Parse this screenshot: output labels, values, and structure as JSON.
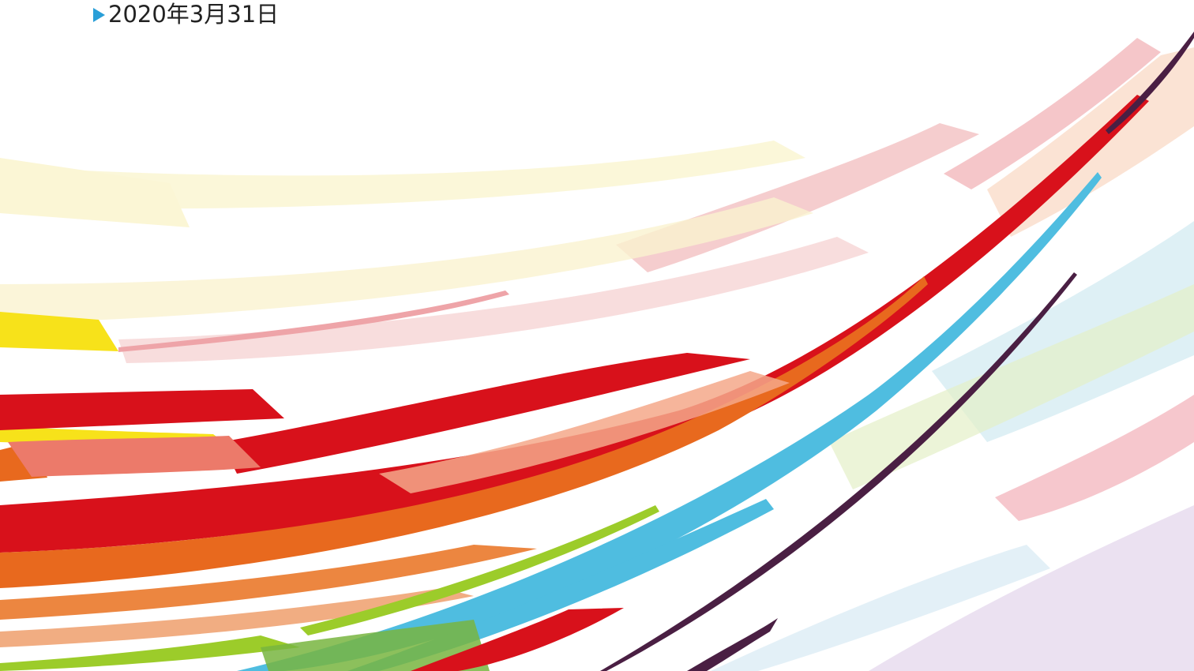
{
  "document": {
    "date": "2020年3月31日",
    "marker_icon": "triangle-right-icon"
  },
  "colors": {
    "marker": "#2a9fd8",
    "text": "#222222",
    "red": "#d8111b",
    "orange": "#e8691e",
    "yellow": "#f7e21a",
    "cyan": "#4fbde0",
    "green": "#9ccc2a",
    "pink": "#f3b8bc",
    "cream": "#fbf6d5",
    "lavender": "#e3d4ee",
    "dark_purple": "#4a1f43"
  }
}
